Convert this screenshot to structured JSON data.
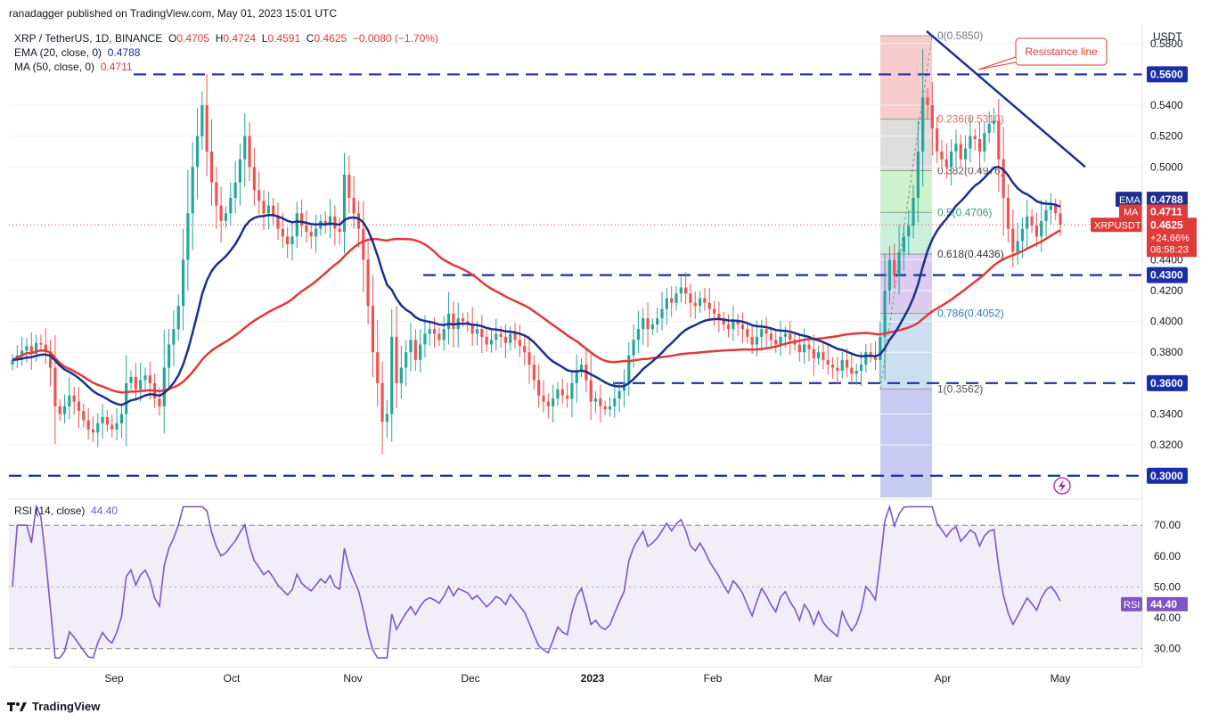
{
  "publisher": "ranadagger published on TradingView.com, May 01, 2023 15:01 UTC",
  "legend": {
    "symbol": "XRP / TetherUS, 1D, BINANCE",
    "open_label": "O",
    "open": "0.4705",
    "high_label": "H",
    "high": "0.4724",
    "low_label": "L",
    "low": "0.4591",
    "close_label": "C",
    "close": "0.4625",
    "change": "−0.0080 (−1.70%)",
    "ema_label": "EMA (20, close, 0)",
    "ema_value": "0.4788",
    "ma_label": "MA (50, close, 0)",
    "ma_value": "0.4711"
  },
  "rsi_legend": {
    "label": "RSI (14, close)",
    "value": "44.40"
  },
  "footer": {
    "brand": "TradingView"
  },
  "colors": {
    "up": "#26a69a",
    "down": "#ef5350",
    "ema": "#1e2f8c",
    "ma": "#e03a3a",
    "rsi": "#7e57c2",
    "level": "#1a2ea8"
  },
  "chart_data": {
    "type": "candlestick",
    "symbol": "XRPUSDT",
    "currency_label": "USDT",
    "x_ticks": [
      "Sep",
      "Oct",
      "Nov",
      "Dec",
      "2023",
      "Feb",
      "Mar",
      "Apr",
      "May"
    ],
    "y_ticks": [
      "0.5800",
      "0.5400",
      "0.5200",
      "0.5000",
      "0.4400",
      "0.4200",
      "0.4000",
      "0.3800",
      "0.3400",
      "0.3200"
    ],
    "ylim": [
      0.286,
      0.592
    ],
    "horizontal_levels": [
      "0.5600",
      "0.4300",
      "0.3600",
      "0.3000"
    ],
    "fibonacci": [
      {
        "label": "0(0.5850)",
        "value": 0.585
      },
      {
        "label": "0.236(0.5310)",
        "value": 0.531
      },
      {
        "label": "0.382(0.4976)",
        "value": 0.4976
      },
      {
        "label": "0.5(0.4706)",
        "value": 0.4706
      },
      {
        "label": "0.618(0.4436)",
        "value": 0.4436
      },
      {
        "label": "0.786(0.4052)",
        "value": 0.4052
      },
      {
        "label": "1(0.3562)",
        "value": 0.3562
      }
    ],
    "annotation": "Resistance line",
    "price_tags": {
      "ema_tag": "EMA",
      "ema_value": "0.4788",
      "ma_tag": "MA",
      "ma_value": "0.4711",
      "symbol_tag": "XRPUSDT",
      "last": "0.4625",
      "change_pct": "+24.66%",
      "countdown": "08:58:23"
    },
    "closes": [
      0.375,
      0.378,
      0.381,
      0.384,
      0.379,
      0.386,
      0.385,
      0.38,
      0.37,
      0.345,
      0.34,
      0.345,
      0.352,
      0.348,
      0.342,
      0.336,
      0.33,
      0.328,
      0.334,
      0.338,
      0.333,
      0.33,
      0.334,
      0.34,
      0.36,
      0.364,
      0.356,
      0.362,
      0.365,
      0.36,
      0.35,
      0.345,
      0.37,
      0.385,
      0.395,
      0.41,
      0.44,
      0.47,
      0.5,
      0.52,
      0.54,
      0.51,
      0.49,
      0.475,
      0.465,
      0.47,
      0.48,
      0.49,
      0.505,
      0.52,
      0.5,
      0.485,
      0.478,
      0.47,
      0.475,
      0.468,
      0.46,
      0.455,
      0.45,
      0.455,
      0.47,
      0.462,
      0.458,
      0.455,
      0.46,
      0.465,
      0.462,
      0.468,
      0.46,
      0.458,
      0.495,
      0.48,
      0.47,
      0.46,
      0.44,
      0.41,
      0.38,
      0.36,
      0.335,
      0.34,
      0.39,
      0.36,
      0.37,
      0.38,
      0.388,
      0.375,
      0.385,
      0.392,
      0.395,
      0.392,
      0.388,
      0.395,
      0.405,
      0.395,
      0.402,
      0.4,
      0.398,
      0.392,
      0.395,
      0.39,
      0.385,
      0.388,
      0.392,
      0.39,
      0.386,
      0.392,
      0.388,
      0.384,
      0.38,
      0.372,
      0.362,
      0.352,
      0.348,
      0.345,
      0.35,
      0.356,
      0.352,
      0.35,
      0.36,
      0.368,
      0.372,
      0.362,
      0.348,
      0.35,
      0.345,
      0.343,
      0.345,
      0.35,
      0.355,
      0.36,
      0.378,
      0.388,
      0.395,
      0.402,
      0.395,
      0.398,
      0.402,
      0.408,
      0.415,
      0.412,
      0.418,
      0.422,
      0.418,
      0.412,
      0.41,
      0.415,
      0.412,
      0.408,
      0.405,
      0.402,
      0.398,
      0.395,
      0.4,
      0.398,
      0.395,
      0.39,
      0.385,
      0.39,
      0.395,
      0.392,
      0.388,
      0.385,
      0.39,
      0.392,
      0.388,
      0.385,
      0.38,
      0.385,
      0.382,
      0.376,
      0.38,
      0.375,
      0.372,
      0.37,
      0.368,
      0.375,
      0.37,
      0.366,
      0.368,
      0.372,
      0.38,
      0.378,
      0.375,
      0.39,
      0.42,
      0.44,
      0.43,
      0.445,
      0.455,
      0.462,
      0.48,
      0.51,
      0.545,
      0.54,
      0.525,
      0.51,
      0.505,
      0.5,
      0.51,
      0.515,
      0.505,
      0.512,
      0.52,
      0.518,
      0.51,
      0.522,
      0.528,
      0.53,
      0.505,
      0.48,
      0.46,
      0.445,
      0.452,
      0.46,
      0.468,
      0.462,
      0.455,
      0.465,
      0.472,
      0.475,
      0.47,
      0.4625
    ],
    "rsi": {
      "ylabel_ticks": [
        "70.00",
        "60.00",
        "50.00",
        "40.00",
        "30.00"
      ],
      "ylim": [
        25,
        77
      ],
      "bands": [
        70,
        30
      ],
      "mid": 50,
      "last": "44.40"
    }
  }
}
